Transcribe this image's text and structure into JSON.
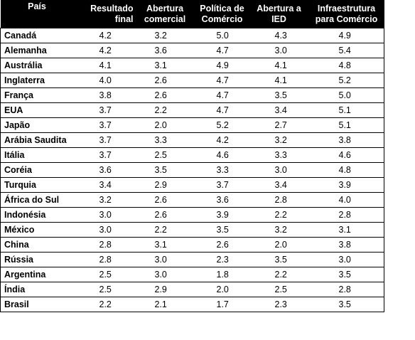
{
  "table": {
    "headers": {
      "pais": "País",
      "resultado_final": "Resultado final",
      "abertura_comercial": "Abertura comercial",
      "politica_comercio": "Política de Comércio",
      "abertura_ied": "Abertura a IED",
      "infraestrutura": "Infraestrutura para Comércio"
    },
    "rows": [
      {
        "country": "Canadá",
        "values": [
          "4.2",
          "3.2",
          "5.0",
          "4.3",
          "4.9"
        ]
      },
      {
        "country": "Alemanha",
        "values": [
          "4.2",
          "3.6",
          "4.7",
          "3.0",
          "5.4"
        ]
      },
      {
        "country": "Austrália",
        "values": [
          "4.1",
          "3.1",
          "4.9",
          "4.1",
          "4.8"
        ]
      },
      {
        "country": "Inglaterra",
        "values": [
          "4.0",
          "2.6",
          "4.7",
          "4.1",
          "5.2"
        ]
      },
      {
        "country": "França",
        "values": [
          "3.8",
          "2.6",
          "4.7",
          "3.5",
          "5.0"
        ]
      },
      {
        "country": "EUA",
        "values": [
          "3.7",
          "2.2",
          "4.7",
          "3.4",
          "5.1"
        ]
      },
      {
        "country": "Japão",
        "values": [
          "3.7",
          "2.0",
          "5.2",
          "2.7",
          "5.1"
        ]
      },
      {
        "country": "Arábia Saudita",
        "values": [
          "3.7",
          "3.3",
          "4.2",
          "3.2",
          "3.8"
        ]
      },
      {
        "country": "Itália",
        "values": [
          "3.7",
          "2.5",
          "4.6",
          "3.3",
          "4.6"
        ]
      },
      {
        "country": "Coréia",
        "values": [
          "3.6",
          "3.5",
          "3.3",
          "3.0",
          "4.8"
        ]
      },
      {
        "country": "Turquia",
        "values": [
          "3.4",
          "2.9",
          "3.7",
          "3.4",
          "3.9"
        ]
      },
      {
        "country": "África do Sul",
        "values": [
          "3.2",
          "2.6",
          "3.6",
          "2.8",
          "4.0"
        ]
      },
      {
        "country": "Indonésia",
        "values": [
          "3.0",
          "2.6",
          "3.9",
          "2.2",
          "2.8"
        ]
      },
      {
        "country": "México",
        "values": [
          "3.0",
          "2.2",
          "3.5",
          "3.2",
          "3.1"
        ]
      },
      {
        "country": "China",
        "values": [
          "2.8",
          "3.1",
          "2.6",
          "2.0",
          "3.8"
        ]
      },
      {
        "country": "Rússia",
        "values": [
          "2.8",
          "3.0",
          "2.3",
          "3.5",
          "3.0"
        ]
      },
      {
        "country": "Argentina",
        "values": [
          "2.5",
          "3.0",
          "1.8",
          "2.2",
          "3.5"
        ]
      },
      {
        "country": "Índia",
        "values": [
          "2.5",
          "2.9",
          "2.0",
          "2.5",
          "2.8"
        ]
      },
      {
        "country": "Brasil",
        "values": [
          "2.2",
          "2.1",
          "1.7",
          "2.3",
          "3.5"
        ]
      }
    ]
  }
}
